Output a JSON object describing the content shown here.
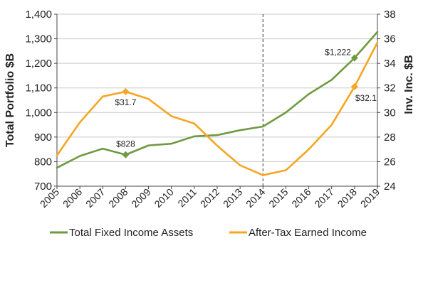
{
  "chart_data": {
    "type": "line",
    "x": [
      "2005",
      "2006",
      "2007",
      "2008",
      "2009",
      "2010",
      "2011",
      "2012",
      "2013",
      "2014",
      "2015",
      "2016",
      "2017",
      "2018",
      "2019"
    ],
    "ylabel": "Total Portfolio $B",
    "y2label": "Inv. Inc. $B",
    "ylim": [
      700,
      1400
    ],
    "y2lim": [
      24,
      38
    ],
    "yticks": [
      "700",
      "800",
      "900",
      "1,000",
      "1,100",
      "1,200",
      "1,300",
      "1,400"
    ],
    "y2ticks": [
      "24",
      "26",
      "28",
      "30",
      "32",
      "34",
      "36",
      "38"
    ],
    "vline_at": "2014",
    "grid": "horizontal",
    "legend_position": "bottom",
    "series": [
      {
        "name": "Total Fixed Income Assets",
        "axis": "left",
        "color": "#6f9a40",
        "values": [
          775,
          823,
          853,
          828,
          866,
          873,
          903,
          908,
          928,
          943,
          1000,
          1075,
          1133,
          1222,
          1328
        ]
      },
      {
        "name": "After-Tax Earned Income",
        "axis": "right",
        "color": "#f5a623",
        "values": [
          26.5,
          29.2,
          31.3,
          31.7,
          31.1,
          29.7,
          29.1,
          27.3,
          25.7,
          24.9,
          25.3,
          27.0,
          29.0,
          32.1,
          35.7
        ]
      }
    ],
    "annotations": [
      {
        "series": 0,
        "x": "2008",
        "label": "$828"
      },
      {
        "series": 1,
        "x": "2008",
        "label": "$31.7"
      },
      {
        "series": 0,
        "x": "2018",
        "label": "$1,222"
      },
      {
        "series": 1,
        "x": "2018",
        "label": "$32.1"
      }
    ]
  }
}
